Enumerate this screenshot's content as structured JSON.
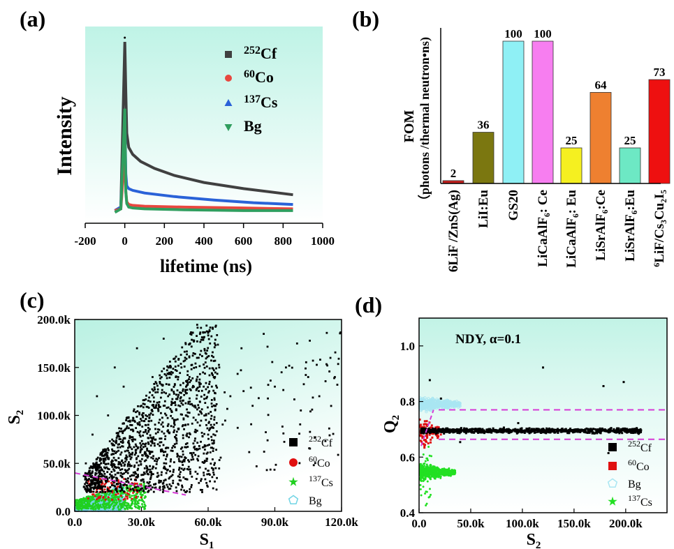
{
  "panels": {
    "a": "(a)",
    "b": "(b)",
    "c": "(c)",
    "d": "(d)"
  },
  "colors": {
    "cf": "#404040",
    "co": "#e8473f",
    "cs": "#2a62d8",
    "bg": "#2f9e5e",
    "bg_gradient_top": "#bff3e6",
    "dash": "#d63ad6"
  },
  "chart_data": [
    {
      "type": "line",
      "panel": "a",
      "xlabel": "lifetime (ns)",
      "ylabel": "Intensity",
      "xlim": [
        -200,
        1000
      ],
      "xticks": [
        "-200",
        "0",
        "200",
        "400",
        "600",
        "800",
        "1000"
      ],
      "yticks_shown": false,
      "legend_position": "top-right",
      "series": [
        {
          "name_sup": "252",
          "name_rest": "Cf",
          "marker": "square",
          "x": [
            -50,
            -20,
            0,
            5,
            10,
            20,
            40,
            80,
            150,
            250,
            400,
            600,
            850
          ],
          "y": [
            0.04,
            0.06,
            1.0,
            0.72,
            0.48,
            0.4,
            0.36,
            0.32,
            0.28,
            0.24,
            0.2,
            0.165,
            0.13
          ]
        },
        {
          "name_sup": "60",
          "name_rest": "Co",
          "marker": "circle",
          "x": [
            -50,
            -20,
            0,
            5,
            10,
            20,
            40,
            100,
            300,
            600,
            850
          ],
          "y": [
            0.04,
            0.05,
            0.37,
            0.15,
            0.09,
            0.075,
            0.07,
            0.065,
            0.06,
            0.055,
            0.05
          ]
        },
        {
          "name_sup": "137",
          "name_rest": "Cs",
          "marker": "triangle-up",
          "x": [
            -50,
            -20,
            0,
            5,
            10,
            20,
            40,
            100,
            250,
            450,
            650,
            850
          ],
          "y": [
            0.04,
            0.06,
            0.58,
            0.25,
            0.18,
            0.165,
            0.155,
            0.14,
            0.12,
            0.1,
            0.085,
            0.075
          ]
        },
        {
          "name_sup": "",
          "name_rest": "Bg",
          "marker": "triangle-down",
          "x": [
            -50,
            -20,
            0,
            5,
            10,
            20,
            40,
            100,
            300,
            600,
            850
          ],
          "y": [
            0.03,
            0.05,
            0.62,
            0.15,
            0.08,
            0.06,
            0.055,
            0.05,
            0.045,
            0.04,
            0.04
          ]
        }
      ]
    },
    {
      "type": "bar",
      "panel": "b",
      "ylabel_line1": "FOM",
      "ylabel_line2": "（photons /thermal neutron•ns)",
      "ylim": [
        0,
        100
      ],
      "categories": [
        {
          "label": "6LiF /ZnS(Ag)",
          "sup": "",
          "pre": ""
        },
        {
          "label": "LiI:Eu",
          "sup": "",
          "pre": ""
        },
        {
          "label": "GS20",
          "sup": "",
          "pre": ""
        },
        {
          "label": "LiCaAlF₆: Ce",
          "sup": "",
          "pre": ""
        },
        {
          "label": "LiCaAlF₆: Eu",
          "sup": "",
          "pre": ""
        },
        {
          "label": "LiSrAlF₆:Ce",
          "sup": "",
          "pre": ""
        },
        {
          "label": "LiSrAlF₆:Eu",
          "sup": "",
          "pre": ""
        },
        {
          "label": "LiF/Cs₃Cu₂I₅",
          "sup": "6",
          "pre": ""
        }
      ],
      "values": [
        2,
        36,
        100,
        100,
        25,
        64,
        25,
        73
      ],
      "value_labels": [
        "2",
        "36",
        "100",
        "100",
        "25",
        "64",
        "25",
        "73"
      ],
      "bar_colors": [
        "#c8201e",
        "#7b7710",
        "#8ff0f5",
        "#f77ef0",
        "#f5f020",
        "#ee8030",
        "#6de8c4",
        "#ee1010"
      ]
    },
    {
      "type": "scatter",
      "panel": "c",
      "xlabel": "S",
      "xlabel_sub": "1",
      "ylabel": "S",
      "ylabel_sub": "2",
      "xlim": [
        0,
        120000
      ],
      "ylim": [
        0,
        200000
      ],
      "xticks": [
        "0.0",
        "30.0k",
        "60.0k",
        "90.0k",
        "120.0k"
      ],
      "yticks": [
        "0.0",
        "50.0k",
        "100.0k",
        "150.0k",
        "200.0k"
      ],
      "divider_line": {
        "x": [
          0,
          50000
        ],
        "y": [
          40000,
          17000
        ]
      },
      "legend_position": "bottom-right",
      "series": [
        {
          "name_sup": "252",
          "name_rest": "Cf",
          "marker": "square",
          "color": "#000000",
          "points": [
            [
              5000,
              50000
            ],
            [
              8000,
              80000
            ],
            [
              10000,
              120000
            ],
            [
              12000,
              60000
            ],
            [
              15000,
              100000
            ],
            [
              18000,
              150000
            ],
            [
              20000,
              70000
            ],
            [
              22000,
              130000
            ],
            [
              25000,
              90000
            ],
            [
              28000,
              170000
            ],
            [
              30000,
              110000
            ],
            [
              32000,
              60000
            ],
            [
              35000,
              140000
            ],
            [
              38000,
              85000
            ],
            [
              40000,
              180000
            ],
            [
              42000,
              120000
            ],
            [
              45000,
              70000
            ],
            [
              48000,
              150000
            ],
            [
              50000,
              100000
            ],
            [
              55000,
              160000
            ],
            [
              58000,
              130000
            ],
            [
              60000,
              80000
            ],
            [
              65000,
              150000
            ],
            [
              70000,
              120000
            ],
            [
              75000,
              170000
            ],
            [
              80000,
              110000
            ],
            [
              85000,
              185000
            ],
            [
              90000,
              130000
            ],
            [
              95000,
              150000
            ],
            [
              100000,
              175000
            ],
            [
              105000,
              140000
            ],
            [
              110000,
              120000
            ],
            [
              115000,
              160000
            ],
            [
              117000,
              140000
            ]
          ]
        },
        {
          "name_sup": "60",
          "name_rest": "Co",
          "marker": "circle",
          "color": "#e01010",
          "points": [
            [
              5000,
              15000
            ],
            [
              10000,
              25000
            ],
            [
              15000,
              30000
            ],
            [
              20000,
              28000
            ],
            [
              25000,
              35000
            ]
          ]
        },
        {
          "name_sup": "137",
          "name_rest": "Cs",
          "marker": "star",
          "color": "#20d020",
          "points": [
            [
              3000,
              8000
            ],
            [
              8000,
              14000
            ],
            [
              13000,
              18000
            ],
            [
              18000,
              20000
            ],
            [
              23000,
              24000
            ],
            [
              28000,
              22000
            ]
          ]
        },
        {
          "name_sup": "",
          "name_rest": "Bg",
          "marker": "pentagon",
          "color": "#6fd4e4",
          "points": [
            [
              2000,
              4000
            ],
            [
              5000,
              9000
            ],
            [
              8000,
              12000
            ],
            [
              12000,
              14000
            ],
            [
              15000,
              15000
            ]
          ]
        }
      ]
    },
    {
      "type": "scatter",
      "panel": "d",
      "annotation": "NDY, α=0.1",
      "xlabel": "S",
      "xlabel_sub": "2",
      "ylabel": "Q",
      "ylabel_sub": "2",
      "xlim": [
        0,
        240000
      ],
      "ylim": [
        0.4,
        1.1
      ],
      "xticks": [
        "0.0",
        "50.0k",
        "100.0k",
        "150.0k",
        "200.0k"
      ],
      "yticks": [
        "0.4",
        "0.6",
        "0.8",
        "1.0"
      ],
      "threshold_lines": [
        0.77,
        0.664
      ],
      "legend_position": "bottom-right",
      "series": [
        {
          "name_sup": "252",
          "name_rest": "Cf",
          "marker": "square",
          "color": "#000000",
          "band": {
            "x": [
              2000,
              215000
            ],
            "y_center": 0.695,
            "spread": 0.012
          }
        },
        {
          "name_sup": "60",
          "name_rest": "Co",
          "marker": "square",
          "color": "#e01010",
          "band": {
            "x": [
              0,
              20000
            ],
            "y_center": 0.72,
            "spread": 0.06
          }
        },
        {
          "name_sup": "",
          "name_rest": "Bg",
          "marker": "pentagon",
          "color": "#a9e6f2",
          "band": {
            "x": [
              0,
              40000
            ],
            "y_center": 0.79,
            "spread": 0.035
          }
        },
        {
          "name_sup": "137",
          "name_rest": "Cs",
          "marker": "star",
          "color": "#22e022",
          "band": {
            "x": [
              0,
              35000
            ],
            "y_center": 0.545,
            "spread": 0.035
          }
        }
      ]
    }
  ]
}
